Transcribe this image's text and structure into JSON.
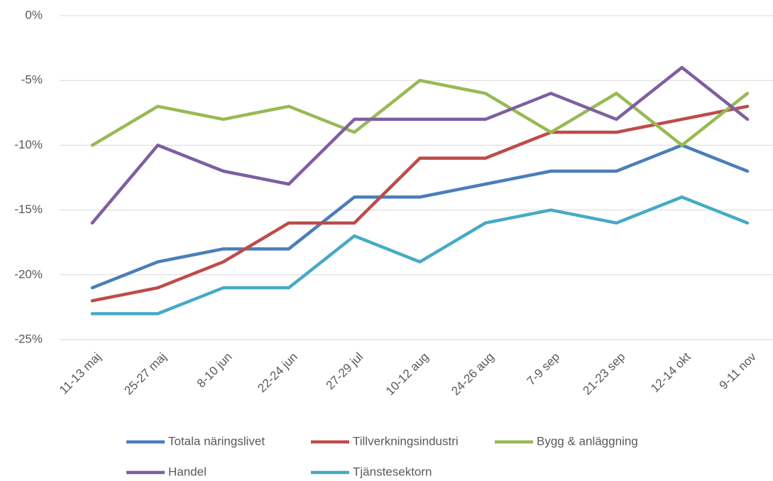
{
  "chart_data": {
    "type": "line",
    "categories": [
      "11-13 maj",
      "25-27 maj",
      "8-10 jun",
      "22-24 jun",
      "27-29 jul",
      "10-12 aug",
      "24-26 aug",
      "7-9 sep",
      "21-23 sep",
      "12-14 okt",
      "9-11 nov"
    ],
    "series": [
      {
        "name": "Totala näringslivet",
        "color": "#4a7ebb",
        "values": [
          -21,
          -19,
          -18,
          -18,
          -14,
          -14,
          -13,
          -12,
          -12,
          -10,
          -12
        ]
      },
      {
        "name": "Tillverkningsindustri",
        "color": "#be4b48",
        "values": [
          -22,
          -21,
          -19,
          -16,
          -16,
          -11,
          -11,
          -9,
          -9,
          -8,
          -7
        ]
      },
      {
        "name": "Bygg & anläggning",
        "color": "#98b954",
        "values": [
          -10,
          -7,
          -8,
          -7,
          -9,
          -5,
          -6,
          -9,
          -6,
          -10,
          -6
        ]
      },
      {
        "name": "Handel",
        "color": "#7d5fa0",
        "values": [
          -16,
          -10,
          -12,
          -13,
          -8,
          -8,
          -8,
          -6,
          -8,
          -4,
          -8
        ]
      },
      {
        "name": "Tjänstesektorn",
        "color": "#46aac5",
        "values": [
          -23,
          -23,
          -21,
          -21,
          -17,
          -19,
          -16,
          -15,
          -16,
          -14,
          -16
        ]
      }
    ],
    "ylim": [
      -25,
      0
    ],
    "yticks": [
      {
        "value": 0,
        "label": "0%"
      },
      {
        "value": -5,
        "label": "-5%"
      },
      {
        "value": -10,
        "label": "-10%"
      },
      {
        "value": -15,
        "label": "-15%"
      },
      {
        "value": -20,
        "label": "-20%"
      },
      {
        "value": -25,
        "label": "-25%"
      }
    ],
    "grid": true
  }
}
